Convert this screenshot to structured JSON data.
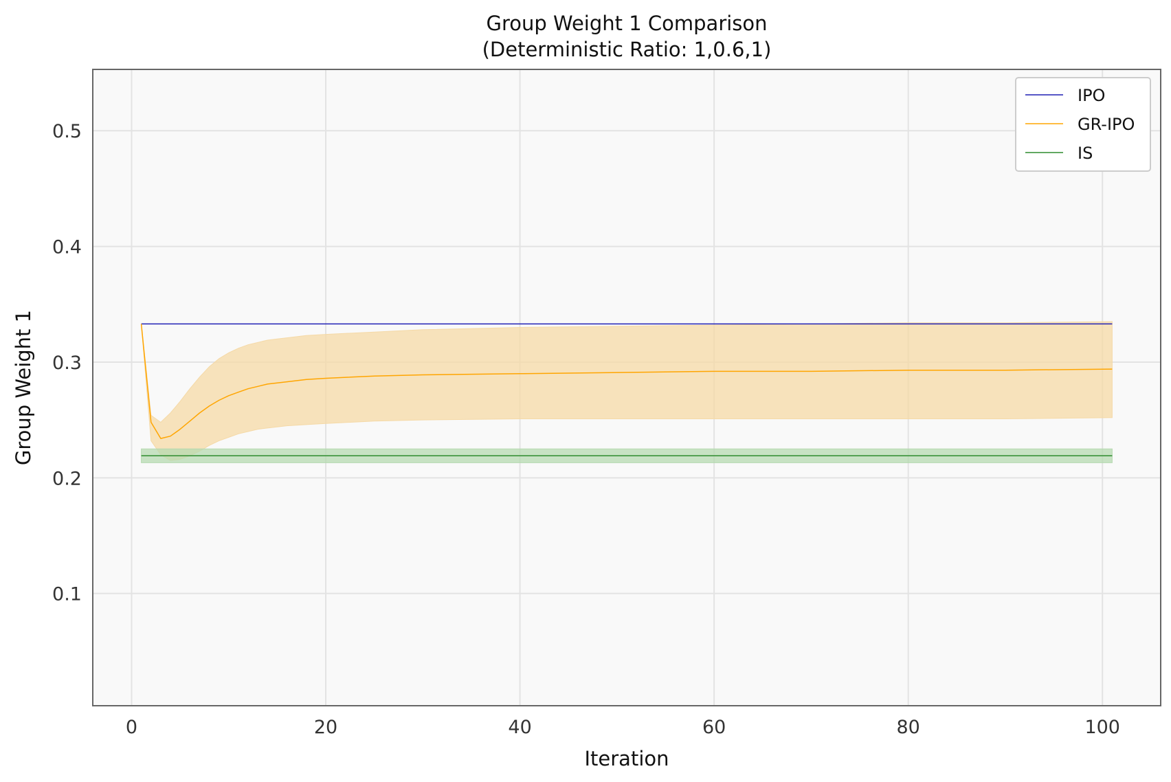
{
  "chart_data": {
    "type": "line",
    "title_line1": "Group Weight 1 Comparison",
    "title_line2": "(Deterministic Ratio: 1,0.6,1)",
    "xlabel": "Iteration",
    "ylabel": "Group Weight 1",
    "xlim": [
      -4,
      106
    ],
    "ylim": [
      0.003,
      0.553
    ],
    "xticks": [
      0,
      20,
      40,
      60,
      80,
      100
    ],
    "xtick_labels": [
      "0",
      "20",
      "40",
      "60",
      "80",
      "100"
    ],
    "yticks": [
      0.1,
      0.2,
      0.3,
      0.4,
      0.5
    ],
    "ytick_labels": [
      "0.1",
      "0.2",
      "0.3",
      "0.4",
      "0.5"
    ],
    "grid": true,
    "legend_position": "top-right",
    "background_color": "#f9f9f9",
    "series": [
      {
        "name": "IPO",
        "color": "#1f1fb4",
        "x": [
          1,
          101
        ],
        "y": [
          0.333,
          0.333
        ]
      },
      {
        "name": "GR-IPO",
        "color": "#ffa500",
        "band_color": "#f5d9a6",
        "x": [
          1,
          2,
          3,
          4,
          5,
          6,
          7,
          8,
          9,
          10,
          11,
          12,
          13,
          14,
          15,
          16,
          18,
          20,
          25,
          30,
          40,
          50,
          60,
          70,
          80,
          90,
          101
        ],
        "y": [
          0.333,
          0.248,
          0.234,
          0.236,
          0.242,
          0.249,
          0.256,
          0.262,
          0.267,
          0.271,
          0.274,
          0.277,
          0.279,
          0.281,
          0.282,
          0.283,
          0.285,
          0.286,
          0.288,
          0.289,
          0.29,
          0.291,
          0.292,
          0.292,
          0.293,
          0.293,
          0.294
        ],
        "lower": [
          0.333,
          0.232,
          0.22,
          0.215,
          0.216,
          0.219,
          0.223,
          0.228,
          0.232,
          0.235,
          0.238,
          0.24,
          0.242,
          0.243,
          0.244,
          0.245,
          0.246,
          0.247,
          0.249,
          0.25,
          0.251,
          0.251,
          0.251,
          0.251,
          0.251,
          0.251,
          0.252
        ],
        "upper": [
          0.333,
          0.254,
          0.248,
          0.256,
          0.266,
          0.277,
          0.287,
          0.296,
          0.303,
          0.308,
          0.312,
          0.315,
          0.317,
          0.319,
          0.32,
          0.321,
          0.323,
          0.324,
          0.326,
          0.328,
          0.33,
          0.331,
          0.332,
          0.333,
          0.334,
          0.334,
          0.335
        ]
      },
      {
        "name": "IS",
        "color": "#2e8b2e",
        "band_color": "#b5d9b0",
        "x": [
          1,
          101
        ],
        "y": [
          0.219,
          0.219
        ],
        "lower": [
          0.213,
          0.213
        ],
        "upper": [
          0.225,
          0.225
        ]
      }
    ]
  }
}
